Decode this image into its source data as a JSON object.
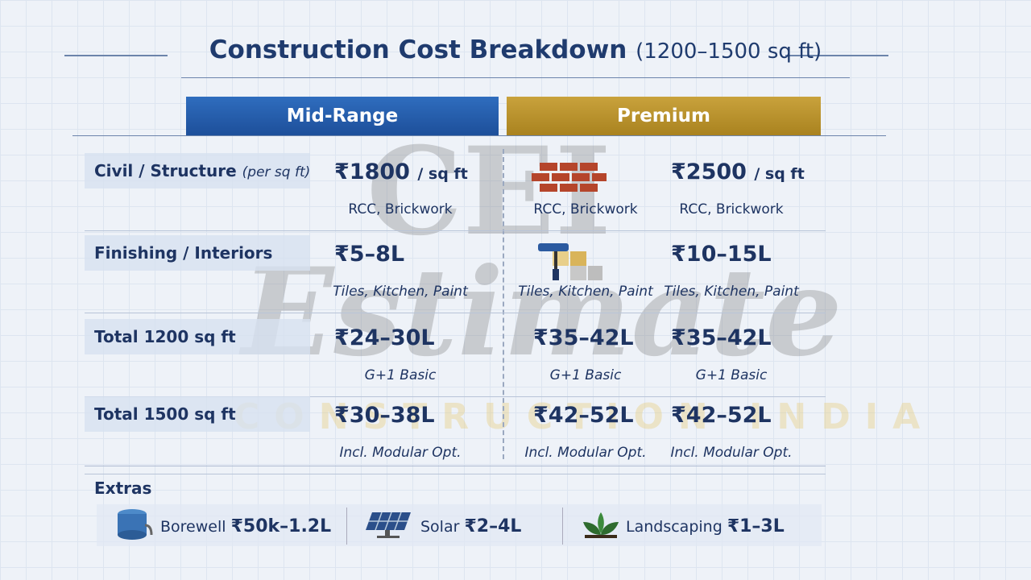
{
  "header": {
    "title": "Construction Cost Breakdown",
    "subtitle": "(1200–1500 sq ft)"
  },
  "watermark": {
    "logo": "CEI",
    "word": "Estimate",
    "tagline": "CONSTRUCTION INDIA"
  },
  "table": {
    "columns": [
      "Mid-Range",
      "Premium"
    ],
    "rows": [
      {
        "label": "Civil / Structure",
        "label_note": "(per sq ft)",
        "mid": {
          "value": "₹1800",
          "unit": "/ sq ft",
          "note": "RCC, Brickwork"
        },
        "premium_left": {
          "note": "RCC, Brickwork"
        },
        "premium": {
          "value": "₹2500",
          "unit": "/ sq ft",
          "note": "RCC, Brickwork"
        }
      },
      {
        "label": "Finishing / Interiors",
        "mid": {
          "value": "₹5–8L",
          "note": "Tiles, Kitchen, Paint"
        },
        "premium_left": {
          "note": "Tiles, Kitchen, Paint"
        },
        "premium": {
          "value": "₹10–15L",
          "note": "Tiles, Kitchen, Paint"
        }
      },
      {
        "label": "Total 1200 sq ft",
        "mid": {
          "value": "₹24–30L",
          "note": "G+1 Basic"
        },
        "premium_left": {
          "value": "₹35–42L",
          "note": "G+1 Basic"
        },
        "premium": {
          "value": "₹35–42L",
          "note": "G+1 Basic"
        }
      },
      {
        "label": "Total 1500 sq ft",
        "mid": {
          "value": "₹30–38L",
          "note": "Incl. Modular Opt."
        },
        "premium_left": {
          "value": "₹42–52L",
          "note": "Incl. Modular Opt."
        },
        "premium": {
          "value": "₹42–52L",
          "note": "Incl. Modular Opt."
        }
      }
    ]
  },
  "extras": {
    "label": "Extras",
    "items": [
      {
        "name": "Borewell",
        "cost": "₹50k–1.2L"
      },
      {
        "name": "Solar",
        "cost": "₹2–4L"
      },
      {
        "name": "Landscaping",
        "cost": "₹1–3L"
      }
    ]
  }
}
